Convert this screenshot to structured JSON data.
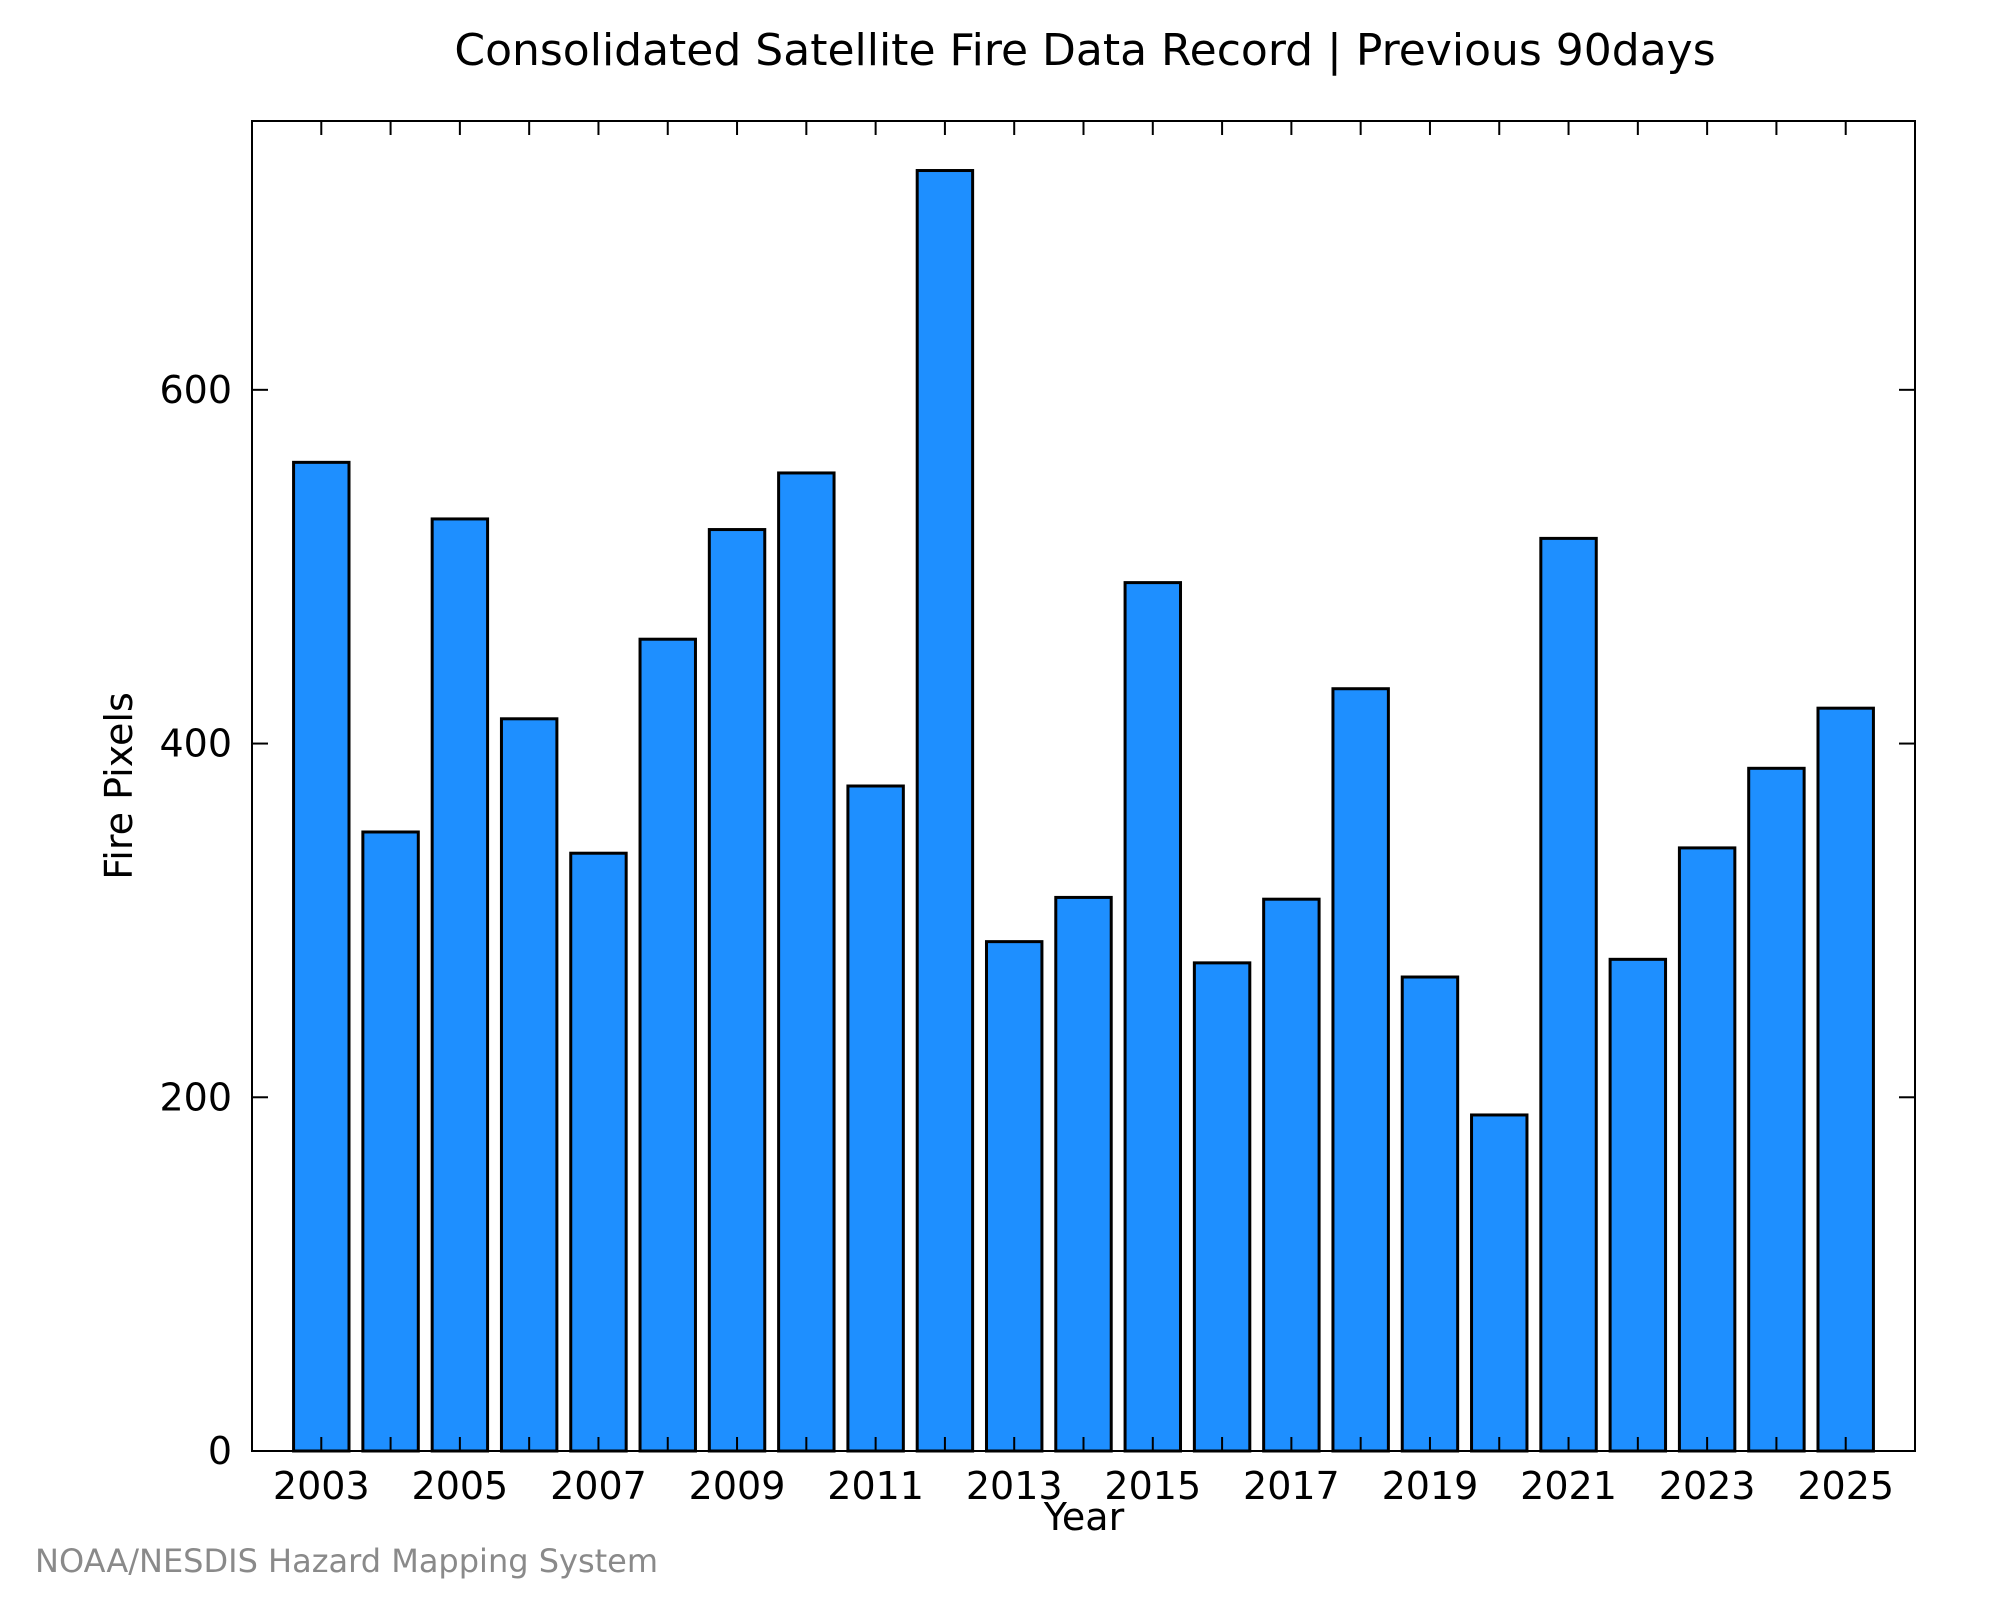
{
  "chart_data": {
    "type": "bar",
    "title": "Consolidated Satellite Fire Data Record | Previous 90days",
    "xlabel": "Year",
    "ylabel": "Fire Pixels",
    "categories": [
      "2003",
      "2004",
      "2005",
      "2006",
      "2007",
      "2008",
      "2009",
      "2010",
      "2011",
      "2012",
      "2013",
      "2014",
      "2015",
      "2016",
      "2017",
      "2018",
      "2019",
      "2020",
      "2021",
      "2022",
      "2023",
      "2024",
      "2025"
    ],
    "values": [
      559,
      350,
      527,
      414,
      338,
      459,
      521,
      553,
      376,
      724,
      288,
      313,
      491,
      276,
      312,
      431,
      268,
      190,
      516,
      278,
      341,
      386,
      420
    ],
    "x_tick_labels": [
      "2003",
      "2005",
      "2007",
      "2009",
      "2011",
      "2013",
      "2015",
      "2017",
      "2019",
      "2021",
      "2023",
      "2025"
    ],
    "y_ticks": [
      0,
      200,
      400,
      600
    ],
    "y_tick_labels": [
      "0",
      "200",
      "400",
      "600"
    ],
    "ylim": [
      0,
      752
    ],
    "grid": false,
    "bar_color": "#1e8fff",
    "bar_edge_color": "#000000"
  },
  "credit": "NOAA/NESDIS Hazard Mapping System"
}
